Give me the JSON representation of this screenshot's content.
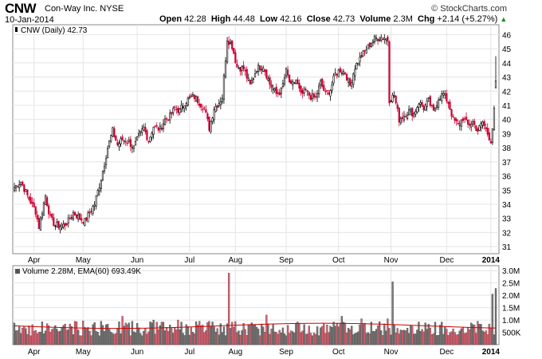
{
  "header": {
    "symbol": "CNW",
    "company": "Con-Way Inc. NYSE",
    "date": "10-Jan-2014",
    "brand": "© StockCharts.com",
    "open_label": "Open",
    "open": "42.28",
    "high_label": "High",
    "high": "44.48",
    "low_label": "Low",
    "low": "42.16",
    "close_label": "Close",
    "close": "42.73",
    "volume_label": "Volume",
    "volume": "2.3M",
    "chg_label": "Chg",
    "chg": "+2.14 (+5.27%)"
  },
  "colors": {
    "up": "#000000",
    "down": "#cc0033",
    "vol_up": "#777777",
    "vol_down": "#e06070",
    "ema": "#cc0000",
    "grid": "#e4e4e4"
  },
  "chart_data": [
    {
      "type": "candlestick",
      "legend": "CNW (Daily) 42.73",
      "ylim": [
        30.5,
        46.7
      ],
      "y_ticks": [
        31,
        32,
        33,
        34,
        35,
        36,
        37,
        38,
        39,
        40,
        41,
        42,
        43,
        44,
        45,
        46
      ],
      "x_ticks": [
        "Apr",
        "May",
        "Jun",
        "Jul",
        "Aug",
        "Sep",
        "Oct",
        "Nov",
        "Dec",
        "2014"
      ],
      "x_tick_index": [
        12,
        42,
        75,
        107,
        135,
        166,
        198,
        230,
        264,
        291
      ],
      "num_days": 295,
      "anchors": [
        [
          0,
          35.2
        ],
        [
          4,
          35.6
        ],
        [
          8,
          34.6
        ],
        [
          13,
          33.5
        ],
        [
          15,
          32.4
        ],
        [
          19,
          34.6
        ],
        [
          22,
          33.0
        ],
        [
          25,
          32.5
        ],
        [
          30,
          32.5
        ],
        [
          33,
          32.8
        ],
        [
          36,
          33.4
        ],
        [
          40,
          33.0
        ],
        [
          43,
          32.8
        ],
        [
          46,
          33.4
        ],
        [
          49,
          34.0
        ],
        [
          53,
          35.8
        ],
        [
          57,
          38.0
        ],
        [
          60,
          39.2
        ],
        [
          63,
          38.2
        ],
        [
          66,
          38.6
        ],
        [
          70,
          38.4
        ],
        [
          73,
          38.0
        ],
        [
          76,
          38.8
        ],
        [
          79,
          39.4
        ],
        [
          82,
          38.5
        ],
        [
          85,
          39.5
        ],
        [
          89,
          39.3
        ],
        [
          92,
          40.0
        ],
        [
          95,
          40.2
        ],
        [
          98,
          40.8
        ],
        [
          101,
          40.6
        ],
        [
          104,
          41.2
        ],
        [
          107,
          41.5
        ],
        [
          110,
          41.6
        ],
        [
          113,
          41.2
        ],
        [
          116,
          40.8
        ],
        [
          119,
          39.4
        ],
        [
          122,
          40.8
        ],
        [
          125,
          41.2
        ],
        [
          127,
          41.6
        ],
        [
          130,
          45.7
        ],
        [
          133,
          45.2
        ],
        [
          136,
          43.7
        ],
        [
          140,
          43.6
        ],
        [
          144,
          42.4
        ],
        [
          148,
          43.6
        ],
        [
          152,
          43.8
        ],
        [
          156,
          42.5
        ],
        [
          160,
          41.8
        ],
        [
          163,
          42.0
        ],
        [
          166,
          43.4
        ],
        [
          169,
          42.3
        ],
        [
          172,
          42.8
        ],
        [
          175,
          41.7
        ],
        [
          178,
          42.0
        ],
        [
          181,
          41.6
        ],
        [
          184,
          41.5
        ],
        [
          187,
          42.6
        ],
        [
          190,
          41.8
        ],
        [
          193,
          42.1
        ],
        [
          196,
          43.2
        ],
        [
          199,
          43.5
        ],
        [
          202,
          43.3
        ],
        [
          205,
          42.4
        ],
        [
          208,
          43.7
        ],
        [
          211,
          44.3
        ],
        [
          214,
          44.8
        ],
        [
          217,
          45.3
        ],
        [
          220,
          45.7
        ],
        [
          223,
          45.8
        ],
        [
          226,
          45.8
        ],
        [
          228,
          45.6
        ],
        [
          229,
          41.4
        ],
        [
          232,
          41.7
        ],
        [
          235,
          40.0
        ],
        [
          238,
          40.3
        ],
        [
          241,
          40.6
        ],
        [
          244,
          40.4
        ],
        [
          247,
          41.2
        ],
        [
          250,
          40.8
        ],
        [
          253,
          41.3
        ],
        [
          256,
          40.5
        ],
        [
          259,
          41.5
        ],
        [
          262,
          41.8
        ],
        [
          265,
          41.2
        ],
        [
          268,
          40.0
        ],
        [
          271,
          39.6
        ],
        [
          274,
          40.1
        ],
        [
          277,
          39.6
        ],
        [
          280,
          39.8
        ],
        [
          283,
          39.2
        ],
        [
          286,
          39.8
        ],
        [
          289,
          39.0
        ],
        [
          291,
          38.5
        ],
        [
          292,
          39.4
        ],
        [
          293,
          40.6
        ],
        [
          294,
          42.73
        ]
      ],
      "last_candle": {
        "open": 42.28,
        "high": 44.48,
        "low": 42.16,
        "close": 42.73
      }
    },
    {
      "type": "volume_bar",
      "legend": "Volume 2.28M, EMA(60) 693.49K",
      "ylim": [
        0,
        3200000
      ],
      "y_ticks": [
        500000,
        1000000,
        1500000,
        2000000,
        2500000,
        3000000
      ],
      "y_tick_labels": [
        "500K",
        "1.0M",
        "1.5M",
        "2.0M",
        "2.5M",
        "3.0M"
      ],
      "ema_value": 693490,
      "spikes": [
        [
          131,
          2900000
        ],
        [
          231,
          2550000
        ],
        [
          292,
          2050000
        ],
        [
          294,
          2280000
        ],
        [
          154,
          1200000
        ],
        [
          200,
          1150000
        ],
        [
          66,
          1150000
        ],
        [
          100,
          1000000
        ],
        [
          212,
          1050000
        ],
        [
          85,
          1000000
        ],
        [
          119,
          950000
        ],
        [
          228,
          1050000
        ],
        [
          283,
          950000
        ]
      ],
      "base_volume": 800000
    }
  ]
}
